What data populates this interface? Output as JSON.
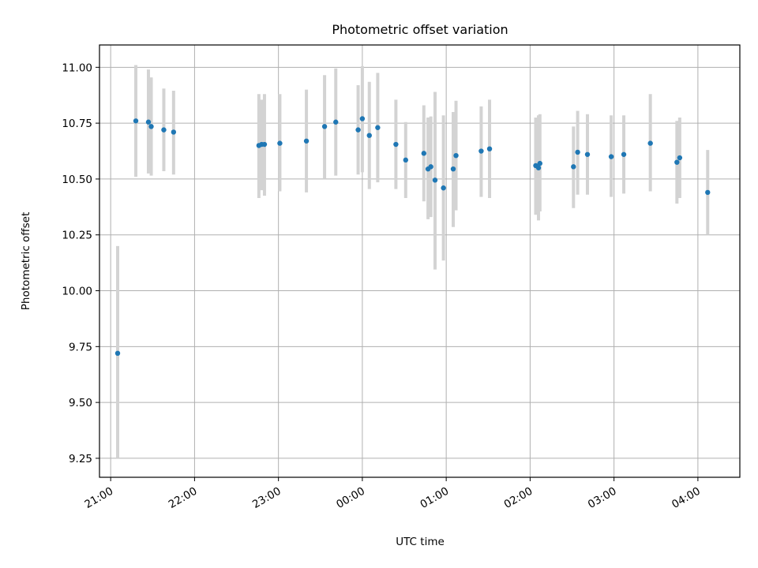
{
  "chart_data": {
    "type": "scatter",
    "title": "Photometric offset variation",
    "xlabel": "UTC time",
    "ylabel": "Photometric offset",
    "x_axis": {
      "kind": "time",
      "range": [
        "20:52",
        "04:30"
      ],
      "ticks": [
        "21:00",
        "22:00",
        "23:00",
        "00:00",
        "01:00",
        "02:00",
        "03:00",
        "04:00"
      ],
      "tick_label_rotation_deg": 30
    },
    "y_axis": {
      "range": [
        9.165,
        11.1
      ],
      "ticks": [
        9.25,
        9.5,
        9.75,
        10.0,
        10.25,
        10.5,
        10.75,
        11.0
      ],
      "tick_labels": [
        "9.25",
        "9.50",
        "9.75",
        "10.00",
        "10.25",
        "10.50",
        "10.75",
        "11.00"
      ]
    },
    "grid": true,
    "colors": {
      "point": "#1f77b4",
      "error_bar": "#d3d3d3",
      "grid": "#b0b0b0"
    },
    "points": [
      {
        "time": "21:05",
        "y": 9.72,
        "ylow": 9.25,
        "yhigh": 10.2
      },
      {
        "time": "21:18",
        "y": 10.76,
        "ylow": 10.51,
        "yhigh": 11.01
      },
      {
        "time": "21:27",
        "y": 10.755,
        "ylow": 10.525,
        "yhigh": 10.99
      },
      {
        "time": "21:29",
        "y": 10.735,
        "ylow": 10.515,
        "yhigh": 10.955
      },
      {
        "time": "21:38",
        "y": 10.72,
        "ylow": 10.535,
        "yhigh": 10.905
      },
      {
        "time": "21:45",
        "y": 10.71,
        "ylow": 10.52,
        "yhigh": 10.895
      },
      {
        "time": "22:46",
        "y": 10.65,
        "ylow": 10.415,
        "yhigh": 10.88
      },
      {
        "time": "22:48",
        "y": 10.655,
        "ylow": 10.45,
        "yhigh": 10.855
      },
      {
        "time": "22:50",
        "y": 10.655,
        "ylow": 10.425,
        "yhigh": 10.88
      },
      {
        "time": "23:01",
        "y": 10.66,
        "ylow": 10.445,
        "yhigh": 10.88
      },
      {
        "time": "23:20",
        "y": 10.67,
        "ylow": 10.44,
        "yhigh": 10.9
      },
      {
        "time": "23:33",
        "y": 10.735,
        "ylow": 10.5,
        "yhigh": 10.965
      },
      {
        "time": "23:41",
        "y": 10.755,
        "ylow": 10.515,
        "yhigh": 10.995
      },
      {
        "time": "23:57",
        "y": 10.72,
        "ylow": 10.52,
        "yhigh": 10.92
      },
      {
        "time": "00:00",
        "y": 10.77,
        "ylow": 10.53,
        "yhigh": 11.005
      },
      {
        "time": "00:05",
        "y": 10.695,
        "ylow": 10.455,
        "yhigh": 10.935
      },
      {
        "time": "00:11",
        "y": 10.73,
        "ylow": 10.485,
        "yhigh": 10.975
      },
      {
        "time": "00:24",
        "y": 10.655,
        "ylow": 10.455,
        "yhigh": 10.855
      },
      {
        "time": "00:31",
        "y": 10.585,
        "ylow": 10.415,
        "yhigh": 10.755
      },
      {
        "time": "00:44",
        "y": 10.615,
        "ylow": 10.4,
        "yhigh": 10.83
      },
      {
        "time": "00:47",
        "y": 10.545,
        "ylow": 10.32,
        "yhigh": 10.775
      },
      {
        "time": "00:49",
        "y": 10.555,
        "ylow": 10.33,
        "yhigh": 10.78
      },
      {
        "time": "00:52",
        "y": 10.495,
        "ylow": 10.095,
        "yhigh": 10.89
      },
      {
        "time": "00:58",
        "y": 10.46,
        "ylow": 10.135,
        "yhigh": 10.785
      },
      {
        "time": "01:05",
        "y": 10.545,
        "ylow": 10.285,
        "yhigh": 10.8
      },
      {
        "time": "01:07",
        "y": 10.605,
        "ylow": 10.36,
        "yhigh": 10.85
      },
      {
        "time": "01:25",
        "y": 10.625,
        "ylow": 10.42,
        "yhigh": 10.825
      },
      {
        "time": "01:31",
        "y": 10.635,
        "ylow": 10.415,
        "yhigh": 10.855
      },
      {
        "time": "02:04",
        "y": 10.56,
        "ylow": 10.34,
        "yhigh": 10.775
      },
      {
        "time": "02:06",
        "y": 10.55,
        "ylow": 10.315,
        "yhigh": 10.785
      },
      {
        "time": "02:07",
        "y": 10.57,
        "ylow": 10.355,
        "yhigh": 10.79
      },
      {
        "time": "02:31",
        "y": 10.555,
        "ylow": 10.37,
        "yhigh": 10.735
      },
      {
        "time": "02:34",
        "y": 10.62,
        "ylow": 10.43,
        "yhigh": 10.805
      },
      {
        "time": "02:41",
        "y": 10.61,
        "ylow": 10.43,
        "yhigh": 10.79
      },
      {
        "time": "02:58",
        "y": 10.6,
        "ylow": 10.42,
        "yhigh": 10.785
      },
      {
        "time": "03:07",
        "y": 10.61,
        "ylow": 10.435,
        "yhigh": 10.785
      },
      {
        "time": "03:26",
        "y": 10.66,
        "ylow": 10.445,
        "yhigh": 10.88
      },
      {
        "time": "03:45",
        "y": 10.575,
        "ylow": 10.39,
        "yhigh": 10.76
      },
      {
        "time": "03:47",
        "y": 10.595,
        "ylow": 10.415,
        "yhigh": 10.775
      },
      {
        "time": "04:07",
        "y": 10.44,
        "ylow": 10.25,
        "yhigh": 10.63
      }
    ]
  }
}
